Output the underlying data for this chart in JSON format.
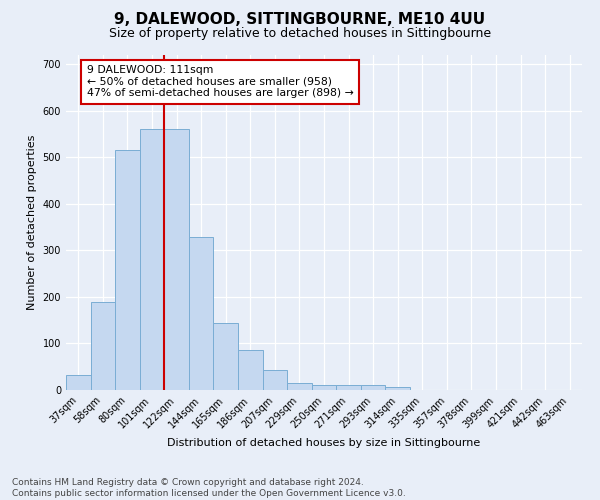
{
  "title": "9, DALEWOOD, SITTINGBOURNE, ME10 4UU",
  "subtitle": "Size of property relative to detached houses in Sittingbourne",
  "xlabel": "Distribution of detached houses by size in Sittingbourne",
  "ylabel": "Number of detached properties",
  "categories": [
    "37sqm",
    "58sqm",
    "80sqm",
    "101sqm",
    "122sqm",
    "144sqm",
    "165sqm",
    "186sqm",
    "207sqm",
    "229sqm",
    "250sqm",
    "271sqm",
    "293sqm",
    "314sqm",
    "335sqm",
    "357sqm",
    "378sqm",
    "399sqm",
    "421sqm",
    "442sqm",
    "463sqm"
  ],
  "values": [
    32,
    190,
    515,
    560,
    560,
    328,
    145,
    85,
    42,
    14,
    10,
    10,
    10,
    7,
    0,
    0,
    0,
    0,
    0,
    0,
    0
  ],
  "bar_color": "#c5d8f0",
  "bar_edge_color": "#7aadd4",
  "vline_color": "#cc0000",
  "annotation_title": "9 DALEWOOD: 111sqm",
  "annotation_line1": "← 50% of detached houses are smaller (958)",
  "annotation_line2": "47% of semi-detached houses are larger (898) →",
  "annotation_box_color": "#ffffff",
  "annotation_border_color": "#cc0000",
  "ylim": [
    0,
    720
  ],
  "yticks": [
    0,
    100,
    200,
    300,
    400,
    500,
    600,
    700
  ],
  "footer_line1": "Contains HM Land Registry data © Crown copyright and database right 2024.",
  "footer_line2": "Contains public sector information licensed under the Open Government Licence v3.0.",
  "background_color": "#e8eef8",
  "plot_background": "#e8eef8",
  "title_fontsize": 11,
  "subtitle_fontsize": 9,
  "axis_label_fontsize": 8,
  "tick_fontsize": 7,
  "footer_fontsize": 6.5
}
